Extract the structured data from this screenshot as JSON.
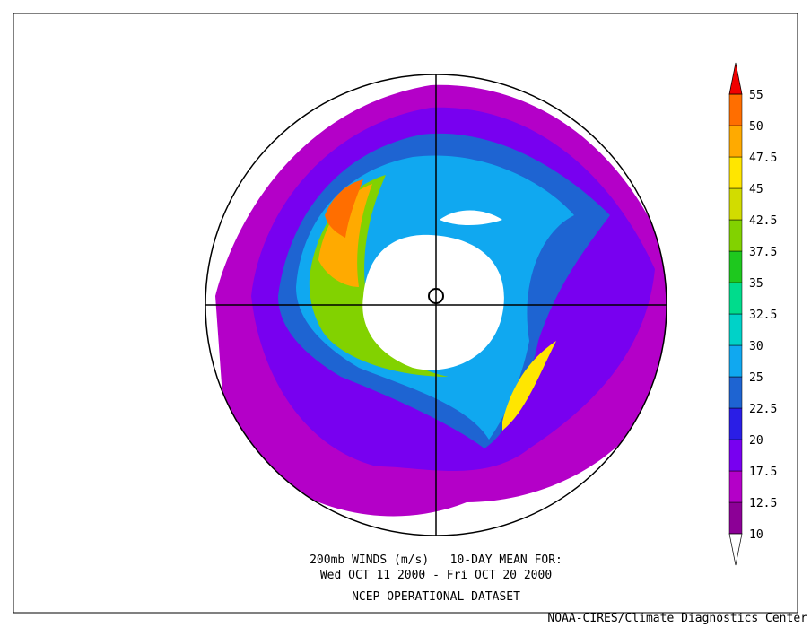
{
  "caption": {
    "line1": "200mb WINDS (m/s)   10-DAY MEAN FOR:",
    "line2": "Wed OCT 11 2000 - Fri OCT 20 2000",
    "line3": "NCEP OPERATIONAL DATASET"
  },
  "credit": "NOAA-CIRES/Climate Diagnostics Center",
  "colorbar": {
    "labels": [
      10,
      12.5,
      17.5,
      20,
      22.5,
      25,
      30,
      32.5,
      35,
      37.5,
      42.5,
      45,
      47.5,
      50,
      55
    ],
    "colors": [
      "#8c0096",
      "#b400c8",
      "#7800f0",
      "#2a1ee6",
      "#1e64d2",
      "#10a8f0",
      "#00d2c8",
      "#00dc8c",
      "#1ec81e",
      "#82d200",
      "#d2dc00",
      "#ffe600",
      "#ffaa00",
      "#ff6e00"
    ],
    "under_color": "#ffffff",
    "over_color": "#f00000"
  }
}
